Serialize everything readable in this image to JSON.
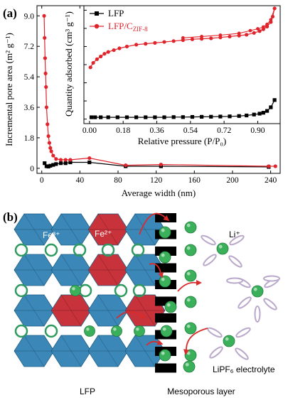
{
  "panel_a_label": "(a)",
  "panel_b_label": "(b)",
  "colors": {
    "lfp": "#000000",
    "lfp_c": "#e0242b",
    "octa_blue": "#3a87b8",
    "octa_red": "#c8323a",
    "ring": "#2f9a5f",
    "ball": "#3bb05a",
    "ellipse": "#b9a8c9"
  },
  "chart_data": [
    {
      "type": "line",
      "xlabel": "Average width (nm)",
      "ylabel": "Incremental pore area (m² g⁻¹)",
      "xlim": [
        -5,
        250
      ],
      "ylim": [
        -0.3,
        9.6
      ],
      "xticks": [
        "0",
        "40",
        "80",
        "120",
        "160",
        "200",
        "240"
      ],
      "yticks": [
        "0",
        "1.8",
        "3.6",
        "5.4",
        "7.2",
        "9.0"
      ],
      "series": [
        {
          "name": "LFP",
          "color": "#000000",
          "marker": "square",
          "x": [
            3,
            5,
            7,
            9,
            12,
            15,
            20,
            25,
            30,
            50,
            88,
            125,
            238
          ],
          "y": [
            0.3,
            0.12,
            0.1,
            0.15,
            0.2,
            0.25,
            0.3,
            0.3,
            0.35,
            0.35,
            0.12,
            0.12,
            0.08
          ]
        },
        {
          "name": "LFP/C_ZIF-8",
          "color": "#e0242b",
          "marker": "circle",
          "x": [
            2.5,
            3,
            3.5,
            4,
            4.5,
            5,
            6,
            7,
            8,
            9,
            10,
            12,
            15,
            20,
            25,
            30,
            50,
            88,
            125,
            238,
            245
          ],
          "y": [
            9.0,
            7.7,
            6.5,
            5.6,
            4.8,
            3.6,
            2.6,
            1.9,
            1.5,
            1.2,
            1.0,
            0.75,
            0.55,
            0.5,
            0.5,
            0.5,
            0.6,
            0.18,
            0.22,
            0.12,
            0.12
          ]
        }
      ]
    },
    {
      "type": "line",
      "xlabel": "Relative pressure (P/P₀)",
      "ylabel": "Quantity adsorbed (cm³ g⁻¹)",
      "xlim": [
        -0.03,
        1.02
      ],
      "ylim": [
        -5,
        125
      ],
      "xticks": [
        "0.00",
        "0.18",
        "0.36",
        "0.54",
        "0.72",
        "0.90"
      ],
      "yticks": [
        "0",
        "20",
        "40",
        "60",
        "80",
        "100",
        "120"
      ],
      "legend": "top-left",
      "series": [
        {
          "name": "LFP",
          "color": "#000000",
          "marker": "square",
          "x": [
            0.01,
            0.03,
            0.06,
            0.1,
            0.15,
            0.2,
            0.25,
            0.3,
            0.35,
            0.4,
            0.45,
            0.5,
            0.55,
            0.6,
            0.65,
            0.7,
            0.75,
            0.8,
            0.84,
            0.88,
            0.91,
            0.93,
            0.95,
            0.97,
            0.99
          ],
          "y": [
            2,
            2,
            2,
            2,
            2,
            2,
            2,
            2,
            2,
            2,
            2.2,
            2.2,
            2.4,
            2.5,
            2.6,
            2.8,
            3,
            3.4,
            4,
            5,
            6,
            7,
            9,
            13,
            21
          ]
        },
        {
          "name": "LFP/C_ZIF-8",
          "color": "#e0242b",
          "marker": "circle",
          "x": [
            0.005,
            0.02,
            0.04,
            0.06,
            0.08,
            0.1,
            0.13,
            0.16,
            0.2,
            0.25,
            0.3,
            0.35,
            0.4,
            0.45,
            0.5,
            0.55,
            0.6,
            0.65,
            0.7,
            0.75,
            0.8,
            0.84,
            0.88,
            0.91,
            0.93,
            0.95,
            0.97,
            0.98,
            0.99
          ],
          "y": [
            57,
            62,
            66,
            69,
            72,
            74,
            76,
            78,
            80,
            82,
            83,
            84,
            85,
            86,
            87,
            88,
            88.5,
            89,
            90,
            91,
            92,
            93,
            95,
            97,
            99,
            102,
            107,
            113,
            122
          ]
        }
      ]
    }
  ],
  "diagram": {
    "ion_fe3": "Fe³⁺",
    "ion_fe2": "Fe²⁺",
    "ion_li": "Li⁺",
    "electrolyte": "LiPF₆ electrolyte",
    "lfp_label": "LFP",
    "mesoporous_label": "Mesoporous layer"
  }
}
